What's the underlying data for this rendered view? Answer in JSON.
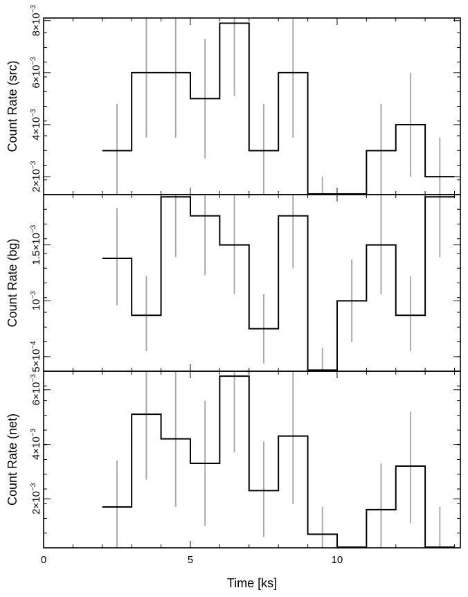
{
  "chart_data": {
    "type": "step",
    "xlabel": "Time [ks]",
    "xlim": [
      0,
      14.2
    ],
    "x_tick_labels": [
      "0",
      "5",
      "10"
    ],
    "bins": [
      2,
      3,
      4,
      5,
      6,
      7,
      8,
      9,
      10,
      11,
      12,
      13,
      14
    ],
    "bin_centers": [
      2.5,
      3.5,
      4.5,
      5.5,
      6.5,
      7.5,
      8.5,
      9.5,
      10.5,
      11.5,
      12.5,
      13.5
    ],
    "panels": [
      {
        "id": "src",
        "ylabel": "Count Rate (src)",
        "ylim": [
          0.00131,
          0.0081
        ],
        "ytick_labels": [
          {
            "value": 0.002,
            "mant": "2",
            "exp": "−3"
          },
          {
            "value": 0.004,
            "mant": "4",
            "exp": "−3"
          },
          {
            "value": 0.006,
            "mant": "6",
            "exp": "−3"
          },
          {
            "value": 0.008,
            "mant": "8",
            "exp": "−3"
          }
        ],
        "values": [
          0.003,
          0.006,
          0.006,
          0.005,
          0.0079,
          0.003,
          0.006,
          0.0013,
          0.0013,
          0.003,
          0.004,
          0.002
        ],
        "err_lo": [
          0.0013,
          0.0035,
          0.0035,
          0.0027,
          0.0051,
          0.0013,
          0.0035,
          0.0013,
          null,
          0.0013,
          0.002,
          0.0013
        ],
        "err_hi": [
          0.0048,
          0.0085,
          0.0085,
          0.0073,
          0.0085,
          0.0048,
          0.0085,
          0.002,
          null,
          0.0048,
          0.006,
          0.0035
        ]
      },
      {
        "id": "bg",
        "ylabel": "Count Rate (bg)",
        "ylim": [
          0.00037,
          0.00195
        ],
        "ytick_labels": [
          {
            "value": 0.0005,
            "mant": "5",
            "exp": "−4"
          },
          {
            "value": 0.001,
            "mant": "",
            "exp": "−3"
          },
          {
            "value": 0.0015,
            "mant": "1.5",
            "exp": "−3"
          }
        ],
        "values": [
          0.00138,
          0.00087,
          0.00193,
          0.00176,
          0.0015,
          0.00075,
          0.00176,
          0.00038,
          0.001,
          0.0015,
          0.00087,
          0.00193
        ],
        "err_lo": [
          0.00096,
          0.00055,
          0.00139,
          0.00123,
          0.00106,
          0.00044,
          0.00129,
          0.00038,
          0.00063,
          0.00106,
          0.00055,
          0.00139
        ],
        "err_hi": [
          0.00183,
          0.00122,
          0.00195,
          0.00195,
          0.00195,
          0.00106,
          0.00195,
          0.00058,
          0.00137,
          0.00195,
          0.00122,
          0.00195
        ]
      },
      {
        "id": "net",
        "ylabel": "Count Rate (net)",
        "ylim": [
          0.0002,
          0.00668
        ],
        "ytick_labels": [
          {
            "value": 0.002,
            "mant": "2",
            "exp": "−3"
          },
          {
            "value": 0.004,
            "mant": "4",
            "exp": "−3"
          },
          {
            "value": 0.006,
            "mant": "6",
            "exp": "−3"
          }
        ],
        "values": [
          0.0017,
          0.0051,
          0.0042,
          0.0033,
          0.0065,
          0.0023,
          0.0043,
          0.0007,
          0.0002,
          0.0016,
          0.0032,
          0.0002
        ],
        "err_lo": [
          0.0002,
          0.0027,
          0.0017,
          0.001,
          0.0037,
          0.0006,
          0.0018,
          0.0002,
          null,
          0.0002,
          0.0011,
          0.0002
        ],
        "err_hi": [
          0.0034,
          0.0067,
          0.0067,
          0.0056,
          0.0067,
          0.0041,
          0.0067,
          0.0017,
          null,
          0.0033,
          0.0052,
          0.0017
        ]
      }
    ]
  }
}
